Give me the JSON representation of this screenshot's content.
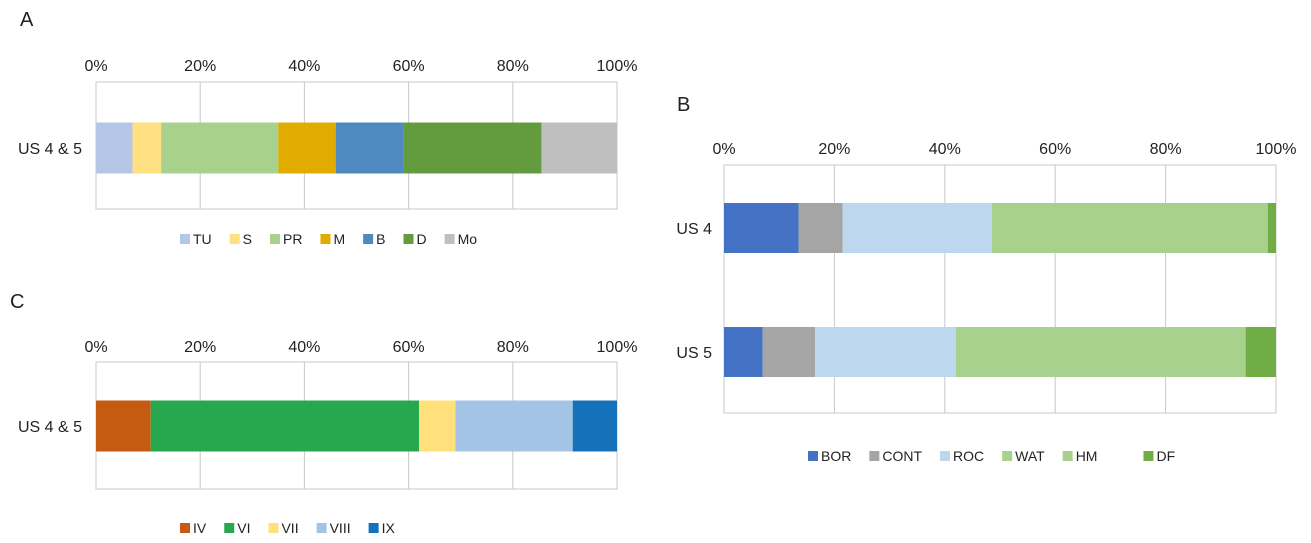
{
  "chart_data": [
    {
      "panel": "A",
      "type": "bar",
      "orientation": "horizontal",
      "stacked": "percent",
      "categories": [
        "US 4 & 5"
      ],
      "xlim": [
        0,
        100
      ],
      "ticks": [
        "0%",
        "20%",
        "40%",
        "60%",
        "80%",
        "100%"
      ],
      "grid": true,
      "legend_position": "bottom",
      "series": [
        {
          "name": "TU",
          "color": "#b4c7e7",
          "values": [
            7
          ]
        },
        {
          "name": "S",
          "color": "#ffe082",
          "values": [
            5.5
          ]
        },
        {
          "name": "PR",
          "color": "#a9d18e",
          "values": [
            22.5
          ]
        },
        {
          "name": "M",
          "color": "#e0ac00",
          "values": [
            11
          ]
        },
        {
          "name": "B",
          "color": "#4e8ac0",
          "values": [
            13
          ]
        },
        {
          "name": "D",
          "color": "#629c3f",
          "values": [
            26.5
          ]
        },
        {
          "name": "Mo",
          "color": "#bfbfbf",
          "values": [
            14.5
          ]
        }
      ]
    },
    {
      "panel": "B",
      "type": "bar",
      "orientation": "horizontal",
      "stacked": "percent",
      "categories": [
        "US 4",
        "US 5"
      ],
      "xlim": [
        0,
        100
      ],
      "ticks": [
        "0%",
        "20%",
        "40%",
        "60%",
        "80%",
        "100%"
      ],
      "grid": true,
      "legend_position": "bottom",
      "series": [
        {
          "name": "BOR",
          "color": "#4472c4",
          "values": [
            13.5,
            7
          ]
        },
        {
          "name": "CONT",
          "color": "#a5a5a5",
          "values": [
            8,
            9.5
          ]
        },
        {
          "name": "ROC",
          "color": "#bdd7ee",
          "values": [
            27,
            25.5
          ]
        },
        {
          "name": "WAT",
          "color": "#a9d18e",
          "values": [
            50,
            52.5
          ]
        },
        {
          "name": "HM",
          "color": "#a9d18e",
          "values": [
            0,
            0
          ]
        },
        {
          "name": "DF",
          "color": "#70ad47",
          "values": [
            1.5,
            5.5
          ]
        }
      ]
    },
    {
      "panel": "C",
      "type": "bar",
      "orientation": "horizontal",
      "stacked": "percent",
      "categories": [
        "US 4 & 5"
      ],
      "xlim": [
        0,
        100
      ],
      "ticks": [
        "0%",
        "20%",
        "40%",
        "60%",
        "80%",
        "100%"
      ],
      "grid": true,
      "legend_position": "bottom",
      "series": [
        {
          "name": "IV",
          "color": "#c55a11",
          "values": [
            10.5
          ]
        },
        {
          "name": "VI",
          "color": "#27a74e",
          "values": [
            51.5
          ]
        },
        {
          "name": "VII",
          "color": "#ffe07a",
          "values": [
            7
          ]
        },
        {
          "name": "VIII",
          "color": "#a4c4e6",
          "values": [
            22.5
          ]
        },
        {
          "name": "IX",
          "color": "#1671bb",
          "values": [
            8.5
          ]
        }
      ]
    }
  ]
}
